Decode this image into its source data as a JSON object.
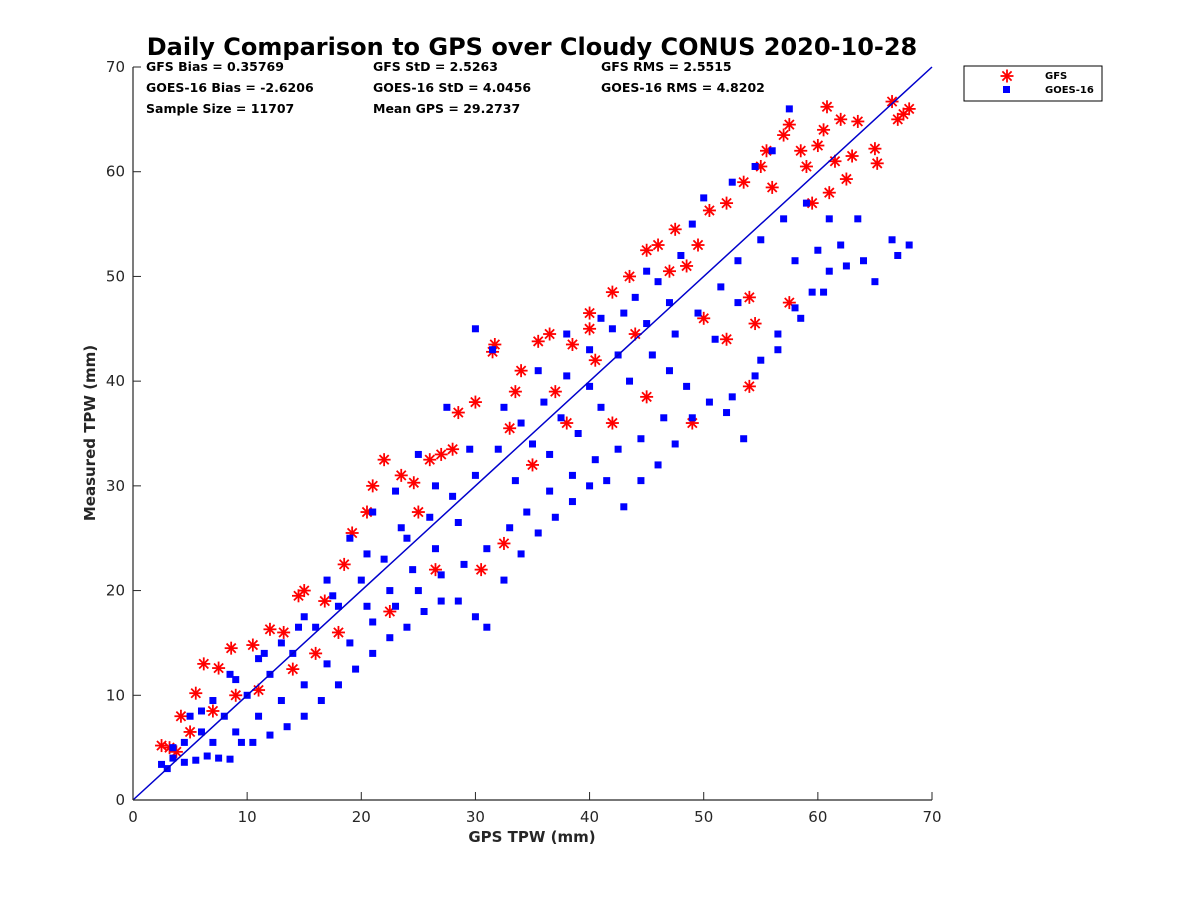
{
  "chart_data": {
    "type": "scatter",
    "title": "Daily Comparison to GPS over Cloudy CONUS 2020-10-28",
    "xlabel": "GPS TPW (mm)",
    "ylabel": "Measured TPW (mm)",
    "xlim": [
      0,
      70
    ],
    "ylim": [
      0,
      70
    ],
    "xticks": [
      "0",
      "10",
      "20",
      "30",
      "40",
      "50",
      "60",
      "70"
    ],
    "yticks": [
      "0",
      "10",
      "20",
      "30",
      "40",
      "50",
      "60",
      "70"
    ],
    "grid": false,
    "legend_position": "outside-top-right",
    "reference_line": {
      "x": [
        0,
        70
      ],
      "y": [
        0,
        70
      ],
      "color": "#0000cc"
    },
    "stats": [
      [
        "GFS Bias = 0.35769",
        "GFS StD = 2.5263",
        "GFS RMS = 2.5515"
      ],
      [
        "GOES-16 Bias = -2.6206",
        "GOES-16 StD = 4.0456",
        "GOES-16 RMS = 4.8202"
      ],
      [
        "Sample Size = 11707",
        "Mean GPS = 29.2737"
      ]
    ],
    "series": [
      {
        "name": "GFS",
        "marker": "asterisk",
        "color": "#ff0000",
        "points": [
          [
            2.5,
            5.2
          ],
          [
            3.2,
            5.0
          ],
          [
            3.8,
            4.6
          ],
          [
            4.2,
            8.0
          ],
          [
            5.5,
            10.2
          ],
          [
            6.2,
            13.0
          ],
          [
            7.5,
            12.6
          ],
          [
            8.6,
            14.5
          ],
          [
            10.5,
            14.8
          ],
          [
            12.0,
            16.3
          ],
          [
            13.2,
            16.0
          ],
          [
            14.5,
            19.5
          ],
          [
            15.0,
            20.0
          ],
          [
            16.8,
            19.0
          ],
          [
            18.5,
            22.5
          ],
          [
            19.2,
            25.5
          ],
          [
            20.5,
            27.5
          ],
          [
            21.0,
            30.0
          ],
          [
            22.0,
            32.5
          ],
          [
            23.5,
            31.0
          ],
          [
            24.6,
            30.3
          ],
          [
            26.0,
            32.5
          ],
          [
            27.0,
            33.0
          ],
          [
            28.5,
            37.0
          ],
          [
            30.0,
            38.0
          ],
          [
            31.5,
            42.8
          ],
          [
            31.7,
            43.5
          ],
          [
            33.5,
            39.0
          ],
          [
            34.0,
            41.0
          ],
          [
            35.5,
            43.8
          ],
          [
            36.5,
            44.5
          ],
          [
            38.5,
            43.5
          ],
          [
            40.0,
            46.5
          ],
          [
            40.0,
            45.0
          ],
          [
            42.0,
            48.5
          ],
          [
            43.5,
            50.0
          ],
          [
            45.0,
            52.5
          ],
          [
            46.0,
            53.0
          ],
          [
            47.5,
            54.5
          ],
          [
            48.5,
            51.0
          ],
          [
            49.5,
            53.0
          ],
          [
            50.5,
            56.3
          ],
          [
            52.0,
            57.0
          ],
          [
            53.5,
            59.0
          ],
          [
            54.0,
            48.0
          ],
          [
            54.0,
            39.5
          ],
          [
            49.0,
            36.0
          ],
          [
            55.0,
            60.5
          ],
          [
            55.5,
            62.0
          ],
          [
            56.0,
            58.5
          ],
          [
            57.0,
            63.5
          ],
          [
            57.5,
            64.5
          ],
          [
            58.5,
            62.0
          ],
          [
            59.0,
            60.5
          ],
          [
            59.5,
            57.0
          ],
          [
            60.0,
            62.5
          ],
          [
            60.5,
            64.0
          ],
          [
            60.8,
            66.2
          ],
          [
            61.0,
            58.0
          ],
          [
            61.5,
            61.0
          ],
          [
            62.0,
            65.0
          ],
          [
            62.5,
            59.3
          ],
          [
            63.0,
            61.5
          ],
          [
            63.5,
            64.8
          ],
          [
            65.0,
            62.2
          ],
          [
            65.2,
            60.8
          ],
          [
            66.5,
            66.7
          ],
          [
            67.0,
            65.0
          ],
          [
            67.5,
            65.5
          ],
          [
            68.0,
            66.0
          ],
          [
            28.0,
            33.5
          ],
          [
            30.5,
            22.0
          ],
          [
            32.5,
            24.5
          ],
          [
            26.5,
            22.0
          ],
          [
            22.5,
            18.0
          ],
          [
            18.0,
            16.0
          ],
          [
            16.0,
            14.0
          ],
          [
            14.0,
            12.5
          ],
          [
            11.0,
            10.5
          ],
          [
            9.0,
            10.0
          ],
          [
            7.0,
            8.5
          ],
          [
            5.0,
            6.5
          ],
          [
            38.0,
            36.0
          ],
          [
            42.0,
            36.0
          ],
          [
            45.0,
            38.5
          ],
          [
            50.0,
            46.0
          ],
          [
            52.0,
            44.0
          ],
          [
            54.5,
            45.5
          ],
          [
            57.5,
            47.5
          ],
          [
            35.0,
            32.0
          ],
          [
            40.5,
            42.0
          ],
          [
            44.0,
            44.5
          ],
          [
            47.0,
            50.5
          ],
          [
            37.0,
            39.0
          ],
          [
            33.0,
            35.5
          ],
          [
            25.0,
            27.5
          ]
        ]
      },
      {
        "name": "GOES-16",
        "marker": "square",
        "color": "#0000ff",
        "points": [
          [
            2.5,
            3.4
          ],
          [
            3.0,
            3.0
          ],
          [
            3.5,
            4.0
          ],
          [
            4.5,
            3.6
          ],
          [
            5.5,
            3.8
          ],
          [
            6.5,
            4.2
          ],
          [
            7.5,
            4.0
          ],
          [
            8.5,
            3.9
          ],
          [
            9.5,
            5.5
          ],
          [
            10.5,
            5.5
          ],
          [
            12.0,
            6.2
          ],
          [
            13.5,
            7.0
          ],
          [
            15.0,
            8.0
          ],
          [
            16.5,
            9.5
          ],
          [
            18.0,
            11.0
          ],
          [
            19.5,
            12.5
          ],
          [
            21.0,
            14.0
          ],
          [
            22.5,
            15.5
          ],
          [
            24.0,
            16.5
          ],
          [
            25.5,
            18.0
          ],
          [
            27.0,
            19.0
          ],
          [
            28.5,
            19.0
          ],
          [
            30.0,
            17.5
          ],
          [
            31.0,
            16.5
          ],
          [
            32.5,
            21.0
          ],
          [
            34.0,
            23.5
          ],
          [
            35.5,
            25.5
          ],
          [
            37.0,
            27.0
          ],
          [
            38.5,
            28.5
          ],
          [
            40.0,
            30.0
          ],
          [
            41.5,
            30.5
          ],
          [
            43.0,
            28.0
          ],
          [
            44.5,
            30.5
          ],
          [
            46.0,
            32.0
          ],
          [
            47.5,
            34.0
          ],
          [
            49.0,
            36.5
          ],
          [
            50.5,
            38.0
          ],
          [
            52.0,
            37.0
          ],
          [
            53.5,
            34.5
          ],
          [
            55.0,
            42.0
          ],
          [
            56.5,
            44.5
          ],
          [
            58.0,
            47.0
          ],
          [
            59.5,
            48.5
          ],
          [
            61.0,
            50.5
          ],
          [
            62.5,
            51.0
          ],
          [
            63.5,
            55.5
          ],
          [
            65.0,
            49.5
          ],
          [
            66.5,
            53.5
          ],
          [
            67.0,
            52.0
          ],
          [
            68.0,
            53.0
          ],
          [
            57.5,
            66.0
          ],
          [
            56.0,
            62.0
          ],
          [
            54.5,
            60.5
          ],
          [
            52.5,
            59.0
          ],
          [
            50.0,
            57.5
          ],
          [
            48.0,
            52.0
          ],
          [
            46.0,
            49.5
          ],
          [
            44.0,
            48.0
          ],
          [
            42.0,
            45.0
          ],
          [
            40.0,
            43.0
          ],
          [
            38.0,
            40.5
          ],
          [
            36.0,
            38.0
          ],
          [
            34.0,
            36.0
          ],
          [
            32.0,
            33.5
          ],
          [
            30.0,
            31.0
          ],
          [
            28.0,
            29.0
          ],
          [
            26.0,
            27.0
          ],
          [
            24.0,
            25.0
          ],
          [
            22.0,
            23.0
          ],
          [
            20.0,
            21.0
          ],
          [
            18.0,
            18.5
          ],
          [
            16.0,
            16.5
          ],
          [
            14.0,
            14.0
          ],
          [
            12.0,
            12.0
          ],
          [
            10.0,
            10.0
          ],
          [
            8.0,
            8.0
          ],
          [
            6.0,
            6.5
          ],
          [
            4.5,
            5.5
          ],
          [
            31.5,
            43.0
          ],
          [
            30.0,
            45.0
          ],
          [
            27.5,
            37.5
          ],
          [
            25.0,
            33.0
          ],
          [
            23.0,
            29.5
          ],
          [
            21.0,
            27.5
          ],
          [
            19.0,
            25.0
          ],
          [
            17.0,
            21.0
          ],
          [
            15.0,
            17.5
          ],
          [
            13.0,
            15.0
          ],
          [
            11.0,
            13.5
          ],
          [
            9.0,
            11.5
          ],
          [
            7.0,
            9.5
          ],
          [
            5.0,
            8.0
          ],
          [
            36.5,
            33.0
          ],
          [
            39.0,
            35.0
          ],
          [
            41.0,
            37.5
          ],
          [
            43.5,
            40.0
          ],
          [
            45.5,
            42.5
          ],
          [
            47.5,
            44.5
          ],
          [
            49.5,
            46.5
          ],
          [
            51.5,
            49.0
          ],
          [
            53.0,
            51.5
          ],
          [
            55.0,
            53.5
          ],
          [
            57.0,
            55.5
          ],
          [
            59.0,
            57.0
          ],
          [
            61.0,
            55.5
          ],
          [
            62.0,
            53.0
          ],
          [
            60.5,
            48.5
          ],
          [
            58.5,
            46.0
          ],
          [
            56.5,
            43.0
          ],
          [
            54.5,
            40.5
          ],
          [
            52.5,
            38.5
          ],
          [
            48.5,
            39.5
          ],
          [
            46.5,
            36.5
          ],
          [
            44.5,
            34.5
          ],
          [
            42.5,
            33.5
          ],
          [
            40.5,
            32.5
          ],
          [
            38.5,
            31.0
          ],
          [
            36.5,
            29.5
          ],
          [
            34.5,
            27.5
          ],
          [
            33.0,
            26.0
          ],
          [
            31.0,
            24.0
          ],
          [
            29.0,
            22.5
          ],
          [
            27.0,
            21.5
          ],
          [
            25.0,
            20.0
          ],
          [
            23.0,
            18.5
          ],
          [
            21.0,
            17.0
          ],
          [
            19.0,
            15.0
          ],
          [
            17.0,
            13.0
          ],
          [
            15.0,
            11.0
          ],
          [
            13.0,
            9.5
          ],
          [
            11.0,
            8.0
          ],
          [
            9.0,
            6.5
          ],
          [
            7.0,
            5.5
          ],
          [
            28.5,
            26.5
          ],
          [
            26.5,
            24.0
          ],
          [
            24.5,
            22.0
          ],
          [
            22.5,
            20.0
          ],
          [
            20.5,
            18.5
          ],
          [
            35.0,
            34.0
          ],
          [
            37.5,
            36.5
          ],
          [
            40.0,
            39.5
          ],
          [
            42.5,
            42.5
          ],
          [
            45.0,
            45.5
          ],
          [
            47.0,
            47.5
          ],
          [
            33.5,
            30.5
          ],
          [
            43.0,
            46.5
          ],
          [
            47.0,
            41.0
          ],
          [
            51.0,
            44.0
          ],
          [
            53.0,
            47.5
          ],
          [
            58.0,
            51.5
          ],
          [
            60.0,
            52.5
          ],
          [
            64.0,
            51.5
          ],
          [
            49.0,
            55.0
          ],
          [
            45.0,
            50.5
          ],
          [
            41.0,
            46.0
          ],
          [
            38.0,
            44.5
          ],
          [
            35.5,
            41.0
          ],
          [
            32.5,
            37.5
          ],
          [
            29.5,
            33.5
          ],
          [
            26.5,
            30.0
          ],
          [
            23.5,
            26.0
          ],
          [
            20.5,
            23.5
          ],
          [
            17.5,
            19.5
          ],
          [
            14.5,
            16.5
          ],
          [
            11.5,
            14.0
          ],
          [
            8.5,
            12.0
          ],
          [
            6.0,
            8.5
          ],
          [
            3.5,
            5.0
          ]
        ]
      }
    ]
  }
}
